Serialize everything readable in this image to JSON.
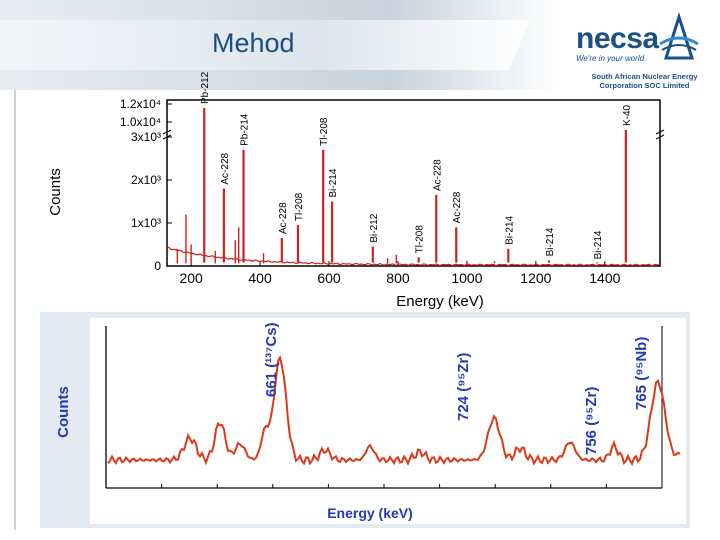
{
  "slide": {
    "title": "Mehod"
  },
  "logo": {
    "wordmark": "necsa",
    "tagline": "We're in your world",
    "organisation_line1": "South African Nuclear Energy",
    "organisation_line2": "Corporation SOC Limited",
    "accent_color": "#1b4f8a"
  },
  "colors": {
    "spectrum": "#d21f1f",
    "bottom_spectrum": "#d83a1a",
    "title": "#1a4e80"
  },
  "chart_data": [
    {
      "type": "line",
      "xlabel": "Energy (keV)",
      "ylabel": "Counts",
      "xlim": [
        130,
        1560
      ],
      "x_ticks": [
        200,
        400,
        600,
        800,
        1000,
        1200,
        1400
      ],
      "x_tick_labels": [
        "200",
        "400",
        "600",
        "800",
        "1000",
        "1200",
        "1400"
      ],
      "y_tick_labels": [
        "0",
        "1x10³",
        "2x10³",
        "3x10³",
        "1.0x10⁴",
        "1.2x10⁴"
      ],
      "axis_break": "between 3x10³ and 1.0x10⁴",
      "peaks": [
        {
          "energy": 238,
          "label": "Pb-212",
          "height": "1.2x10⁴"
        },
        {
          "energy": 295,
          "label": "Ac-228",
          "height": 1800
        },
        {
          "energy": 352,
          "label": "Pb-214",
          "height": 2700
        },
        {
          "energy": 463,
          "label": "Ac-228",
          "height": 650
        },
        {
          "energy": 510,
          "label": "Tl-208",
          "height": 950
        },
        {
          "energy": 583,
          "label": "Tl-208",
          "height": 2700
        },
        {
          "energy": 609,
          "label": "Bi-214",
          "height": 1500
        },
        {
          "energy": 727,
          "label": "Bi-212",
          "height": 450
        },
        {
          "energy": 860,
          "label": "Tl-208",
          "height": 200
        },
        {
          "energy": 911,
          "label": "Ac-228",
          "height": 1650
        },
        {
          "energy": 969,
          "label": "Ac-228",
          "height": 900
        },
        {
          "energy": 1120,
          "label": "Bi-214",
          "height": 400
        },
        {
          "energy": 1238,
          "label": "Bi-214",
          "height": 130
        },
        {
          "energy": 1378,
          "label": "Bi-214",
          "height": 60
        },
        {
          "energy": 1461,
          "label": "K-40",
          "height": 3300
        }
      ]
    },
    {
      "type": "line",
      "xlabel": "Energy (keV)",
      "ylabel": "Counts",
      "peaks": [
        {
          "energy": 661,
          "nuclide": "Cs",
          "mass": "137",
          "label": "661 (¹³⁷Cs)"
        },
        {
          "energy": 724,
          "nuclide": "Zr",
          "mass": "95",
          "label": "724 (⁹⁵Zr)"
        },
        {
          "energy": 756,
          "nuclide": "Zr",
          "mass": "95",
          "label": "756 (⁹⁵Zr)"
        },
        {
          "energy": 765,
          "nuclide": "Nb",
          "mass": "95",
          "label": "765 (⁹⁵Nb)"
        }
      ]
    }
  ]
}
